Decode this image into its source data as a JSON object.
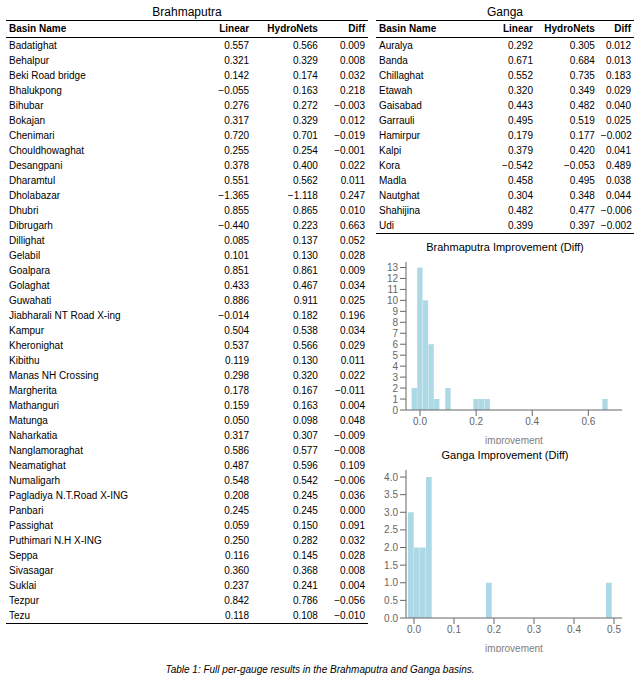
{
  "chart_data": [
    {
      "type": "table",
      "title": "Brahmaputra",
      "xlabel": "Basin Name",
      "categories": [
        "Badatighat",
        "Behalpur",
        "Beki Road bridge",
        "Bhalukpong",
        "Bihubar",
        "Bokajan",
        "Chenimari",
        "Chouldhowaghat",
        "Desangpani",
        "Dharamtul",
        "Dholabazar",
        "Dhubri",
        "Dibrugarh",
        "Dillighat",
        "Gelabil",
        "Goalpara",
        "Golaghat",
        "Guwahati",
        "Jiabharali NT Road X-ing",
        "Kampur",
        "Kheronighat",
        "Kibithu",
        "Manas NH Crossing",
        "Margherita",
        "Mathanguri",
        "Matunga",
        "Naharkatia",
        "Nanglamoraghat",
        "Neamatighat",
        "Numaligarh",
        "Pagladiya N.T.Road X-ING",
        "Panbari",
        "Passighat",
        "Puthimari N.H X-ING",
        "Seppa",
        "Sivasagar",
        "Suklai",
        "Tezpur",
        "Tezu"
      ],
      "series": [
        {
          "name": "Linear",
          "values": [
            0.557,
            0.321,
            0.142,
            -0.055,
            0.276,
            0.317,
            0.72,
            0.255,
            0.378,
            0.551,
            -1.365,
            0.855,
            -0.44,
            0.085,
            0.101,
            0.851,
            0.433,
            0.886,
            -0.014,
            0.504,
            0.537,
            0.119,
            0.298,
            0.178,
            0.159,
            0.05,
            0.317,
            0.586,
            0.487,
            0.548,
            0.208,
            0.245,
            0.059,
            0.25,
            0.116,
            0.36,
            0.237,
            0.842,
            0.118
          ],
          "value_labels": [
            "0.557",
            "0.321",
            "0.142",
            "−0.055",
            "0.276",
            "0.317",
            "0.720",
            "0.255",
            "0.378",
            "0.551",
            "−1.365",
            "0.855",
            "−0.440",
            "0.085",
            "0.101",
            "0.851",
            "0.433",
            "0.886",
            "−0.014",
            "0.504",
            "0.537",
            "0.119",
            "0.298",
            "0.178",
            "0.159",
            "0.050",
            "0.317",
            "0.586",
            "0.487",
            "0.548",
            "0.208",
            "0.245",
            "0.059",
            "0.250",
            "0.116",
            "0.360",
            "0.237",
            "0.842",
            "0.118"
          ]
        },
        {
          "name": "HydroNets",
          "values": [
            0.566,
            0.329,
            0.174,
            0.163,
            0.272,
            0.329,
            0.701,
            0.254,
            0.4,
            0.562,
            -1.118,
            0.865,
            0.223,
            0.137,
            0.13,
            0.861,
            0.467,
            0.911,
            0.182,
            0.538,
            0.566,
            0.13,
            0.32,
            0.167,
            0.163,
            0.098,
            0.307,
            0.577,
            0.596,
            0.542,
            0.245,
            0.245,
            0.15,
            0.282,
            0.145,
            0.368,
            0.241,
            0.786,
            0.108
          ],
          "value_labels": [
            "0.566",
            "0.329",
            "0.174",
            "0.163",
            "0.272",
            "0.329",
            "0.701",
            "0.254",
            "0.400",
            "0.562",
            "−1.118",
            "0.865",
            "0.223",
            "0.137",
            "0.130",
            "0.861",
            "0.467",
            "0.911",
            "0.182",
            "0.538",
            "0.566",
            "0.130",
            "0.320",
            "0.167",
            "0.163",
            "0.098",
            "0.307",
            "0.577",
            "0.596",
            "0.542",
            "0.245",
            "0.245",
            "0.150",
            "0.282",
            "0.145",
            "0.368",
            "0.241",
            "0.786",
            "0.108"
          ]
        },
        {
          "name": "Diff",
          "values": [
            0.009,
            0.008,
            0.032,
            0.218,
            -0.003,
            0.012,
            -0.019,
            -0.001,
            0.022,
            0.011,
            0.247,
            0.01,
            0.663,
            0.052,
            0.028,
            0.009,
            0.034,
            0.025,
            0.196,
            0.034,
            0.029,
            0.011,
            0.022,
            -0.011,
            0.004,
            0.048,
            -0.009,
            -0.008,
            0.109,
            -0.006,
            0.036,
            0.0,
            0.091,
            0.032,
            0.028,
            0.008,
            0.004,
            -0.056,
            -0.01
          ],
          "value_labels": [
            "0.009",
            "0.008",
            "0.032",
            "0.218",
            "−0.003",
            "0.012",
            "−0.019",
            "−0.001",
            "0.022",
            "0.011",
            "0.247",
            "0.010",
            "0.663",
            "0.052",
            "0.028",
            "0.009",
            "0.034",
            "0.025",
            "0.196",
            "0.034",
            "0.029",
            "0.011",
            "0.022",
            "−0.011",
            "0.004",
            "0.048",
            "−0.009",
            "−0.008",
            "0.109",
            "−0.006",
            "0.036",
            "0.000",
            "0.091",
            "0.032",
            "0.028",
            "0.008",
            "0.004",
            "−0.056",
            "−0.010"
          ]
        }
      ]
    },
    {
      "type": "table",
      "title": "Ganga",
      "xlabel": "Basin Name",
      "categories": [
        "Auralya",
        "Banda",
        "Chillaghat",
        "Etawah",
        "Gaisabad",
        "Garrauli",
        "Hamirpur",
        "Kalpi",
        "Kora",
        "Madla",
        "Nautghat",
        "Shahijina",
        "Udi"
      ],
      "series": [
        {
          "name": "Linear",
          "values": [
            0.292,
            0.671,
            0.552,
            0.32,
            0.443,
            0.495,
            0.179,
            0.379,
            -0.542,
            0.458,
            0.304,
            0.482,
            0.399
          ],
          "value_labels": [
            "0.292",
            "0.671",
            "0.552",
            "0.320",
            "0.443",
            "0.495",
            "0.179",
            "0.379",
            "−0.542",
            "0.458",
            "0.304",
            "0.482",
            "0.399"
          ]
        },
        {
          "name": "HydroNets",
          "values": [
            0.305,
            0.684,
            0.735,
            0.349,
            0.482,
            0.519,
            0.177,
            0.42,
            -0.053,
            0.495,
            0.348,
            0.477,
            0.397
          ],
          "value_labels": [
            "0.305",
            "0.684",
            "0.735",
            "0.349",
            "0.482",
            "0.519",
            "0.177",
            "0.420",
            "−0.053",
            "0.495",
            "0.348",
            "0.477",
            "0.397"
          ]
        },
        {
          "name": "Diff",
          "values": [
            0.012,
            0.013,
            0.183,
            0.029,
            0.04,
            0.025,
            -0.002,
            0.041,
            0.489,
            0.038,
            0.044,
            -0.006,
            -0.002
          ],
          "value_labels": [
            "0.012",
            "0.013",
            "0.183",
            "0.029",
            "0.040",
            "0.025",
            "−0.002",
            "0.041",
            "0.489",
            "0.038",
            "0.044",
            "−0.006",
            "−0.002"
          ]
        }
      ]
    },
    {
      "type": "histogram",
      "title": "Brahmaputra Improvement (Diff)",
      "xlabel": "improvement",
      "bins": [
        -0.05,
        -0.03,
        -0.01,
        0.01,
        0.03,
        0.05,
        0.07,
        0.09,
        0.11,
        0.13,
        0.15,
        0.17,
        0.19,
        0.21,
        0.23,
        0.25,
        0.27,
        0.29,
        0.31,
        0.33,
        0.35,
        0.37,
        0.39,
        0.41,
        0.43,
        0.45,
        0.47,
        0.49,
        0.51,
        0.53,
        0.55,
        0.57,
        0.59,
        0.61,
        0.63,
        0.65,
        0.67,
        0.69,
        0.71
      ],
      "values": [
        0,
        2,
        13,
        10,
        6,
        1,
        0,
        2,
        0,
        0,
        0,
        0,
        1,
        1,
        1,
        0,
        0,
        0,
        0,
        0,
        0,
        0,
        0,
        0,
        0,
        0,
        0,
        0,
        0,
        0,
        0,
        0,
        0,
        0,
        0,
        1,
        0,
        0
      ],
      "color": "#add8e6",
      "xlim": [
        -0.05,
        0.72
      ],
      "ylim": [
        0,
        13.5
      ],
      "xticks": [
        {
          "value": 0,
          "label": "0.0"
        },
        0.2,
        0.4,
        0.6
      ],
      "yticks": [
        0,
        1,
        2,
        3,
        4,
        5,
        6,
        7,
        8,
        9,
        10,
        11,
        12,
        13
      ],
      "grid": false
    },
    {
      "type": "histogram",
      "title": "Ganga Improvement (Diff)",
      "xlabel": "improvement",
      "bins": [
        -0.015,
        0,
        0.015,
        0.03,
        0.045,
        0.06,
        0.075,
        0.09,
        0.105,
        0.12,
        0.135,
        0.15,
        0.165,
        0.18,
        0.195,
        0.21,
        0.225,
        0.24,
        0.255,
        0.27,
        0.285,
        0.3,
        0.315,
        0.33,
        0.345,
        0.36,
        0.375,
        0.39,
        0.405,
        0.42,
        0.435,
        0.45,
        0.465,
        0.48,
        0.495,
        0.51
      ],
      "values": [
        3,
        2,
        2,
        4,
        0,
        0,
        0,
        0,
        0,
        0,
        0,
        0,
        0,
        1,
        0,
        0,
        0,
        0,
        0,
        0,
        0,
        0,
        0,
        0,
        0,
        0,
        0,
        0,
        0,
        0,
        0,
        0,
        0,
        1,
        0
      ],
      "color": "#add8e6",
      "xlim": [
        -0.02,
        0.52
      ],
      "ylim": [
        0,
        4.2
      ],
      "xticks": [
        {
          "value": 0,
          "label": "0.0"
        },
        0.1,
        0.2,
        0.3,
        0.4,
        0.5
      ],
      "yticks": [
        {
          "value": 0,
          "label": "0.0"
        },
        0.5,
        {
          "value": 1,
          "label": "1.0"
        },
        1.5,
        {
          "value": 2,
          "label": "2.0"
        },
        2.5,
        {
          "value": 3,
          "label": "3.0"
        },
        3.5,
        {
          "value": 4,
          "label": "4.0"
        }
      ],
      "grid": false
    }
  ],
  "caption": "Table 1: Full per-gauge results in the Brahmaputra and Ganga basins."
}
